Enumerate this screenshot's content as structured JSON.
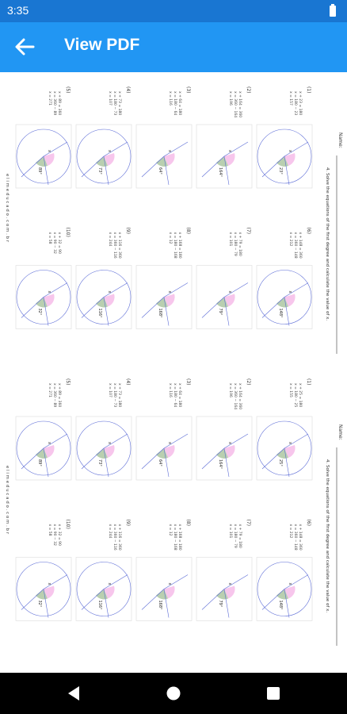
{
  "status_bar": {
    "time": "3:35",
    "battery_icon": "battery-full-icon"
  },
  "app_bar": {
    "title": "View PDF",
    "back_icon": "arrow-left-icon",
    "background": "#2196f3"
  },
  "pdf": {
    "worksheets": [
      {
        "name_label": "Name:",
        "instruction": "4. Solve the equations of the first degree and calculate the value of x.",
        "footer": "e l i m e d u c a d o . c o m . b r",
        "problems": [
          {
            "number": "(1)",
            "angle": "23°",
            "lines": [
              "x + 23 = 180",
              "x = 180 − 23",
              "x = 157"
            ]
          },
          {
            "number": "(2)",
            "angle": "164°",
            "lines": [
              "x + 164 = 360",
              "x = 360 − 164",
              "x = 196"
            ]
          },
          {
            "number": "(3)",
            "angle": "64°",
            "lines": [
              "x + 64 = 180",
              "x = 180 − 64",
              "x = 116"
            ]
          },
          {
            "number": "(4)",
            "angle": "73°",
            "lines": [
              "x + 73 = 180",
              "x = 180 − 73",
              "x = 107"
            ]
          },
          {
            "number": "(5)",
            "angle": "89°",
            "lines": [
              "x + 89 = 360",
              "x = 360 − 89",
              "x = 271"
            ]
          },
          {
            "number": "(6)",
            "angle": "148°",
            "lines": [
              "x + 148 = 360",
              "x = 360 − 148",
              "x = 212"
            ]
          },
          {
            "number": "(7)",
            "angle": "79°",
            "lines": [
              "x + 79 = 180",
              "x = 180 − 79",
              "x = 101"
            ]
          },
          {
            "number": "(8)",
            "angle": "168°",
            "lines": [
              "x + 168 = 180",
              "x = 180 − 168",
              "x = 12"
            ]
          },
          {
            "number": "(9)",
            "angle": "116°",
            "lines": [
              "x + 116 = 360",
              "x = 360 − 116",
              "x = 244"
            ]
          },
          {
            "number": "(10)",
            "angle": "32°",
            "lines": [
              "x + 32 = 90",
              "x = 90 − 32",
              "x = 58"
            ]
          }
        ]
      },
      {
        "name_label": "Name:",
        "instruction": "4. Solve the equations of the first degree and calculate the value of x.",
        "footer": "e l i m e d u c a d o . c o m . b r",
        "problems": [
          {
            "number": "(1)",
            "angle": "25°",
            "lines": [
              "x + 25 = 180",
              "x = 180 − 25",
              "x = 155"
            ]
          },
          {
            "number": "(2)",
            "angle": "164°",
            "lines": [
              "x + 164 = 360",
              "x = 360 − 164",
              "x = 196"
            ]
          },
          {
            "number": "(3)",
            "angle": "64°",
            "lines": [
              "x + 64 = 180",
              "x = 180 − 64",
              "x = 116"
            ]
          },
          {
            "number": "(4)",
            "angle": "73°",
            "lines": [
              "x + 73 = 180",
              "x = 180 − 73",
              "x = 107"
            ]
          },
          {
            "number": "(5)",
            "angle": "89°",
            "lines": [
              "x + 89 = 360",
              "x = 360 − 89",
              "x = 271"
            ]
          },
          {
            "number": "(6)",
            "angle": "148°",
            "lines": [
              "x + 148 = 360",
              "x = 360 − 148",
              "x = 212"
            ]
          },
          {
            "number": "(7)",
            "angle": "79°",
            "lines": [
              "x + 79 = 180",
              "x = 180 − 79",
              "x = 101"
            ]
          },
          {
            "number": "(8)",
            "angle": "168°",
            "lines": [
              "x + 168 = 180",
              "x = 180 − 168",
              "x = 12"
            ]
          },
          {
            "number": "(9)",
            "angle": "116°",
            "lines": [
              "x + 116 = 360",
              "x = 360 − 116",
              "x = 244"
            ]
          },
          {
            "number": "(10)",
            "angle": "32°",
            "lines": [
              "x + 32 = 90",
              "x = 90 − 32",
              "x = 58"
            ]
          }
        ]
      }
    ]
  },
  "nav_bar": {
    "back_icon": "triangle-back-icon",
    "home_icon": "circle-home-icon",
    "recents_icon": "square-recents-icon"
  },
  "colors": {
    "status_bar": "#1976d2",
    "app_bar": "#2196f3",
    "diagram_line": "#5b6bd6",
    "angle_pink": "#f7c6ec",
    "angle_green": "#b9cfb0"
  }
}
